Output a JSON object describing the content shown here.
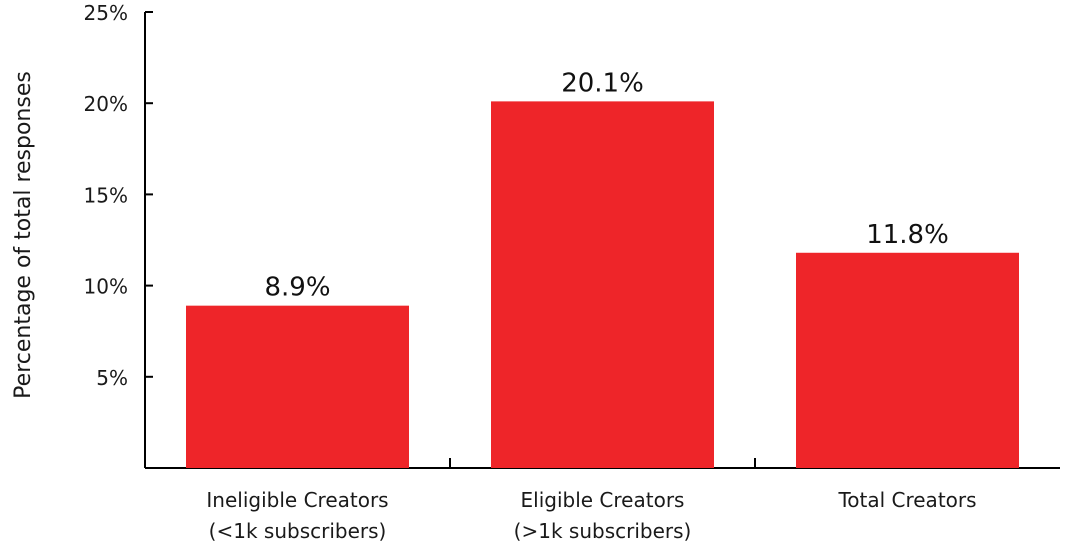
{
  "chart_data": {
    "type": "bar",
    "title": "",
    "xlabel": "",
    "ylabel": "Percentage of total responses",
    "ylim": [
      0,
      25
    ],
    "yticks": [
      5,
      10,
      15,
      20,
      25
    ],
    "ytick_labels": [
      "5%",
      "10%",
      "15%",
      "20%",
      "25%"
    ],
    "categories": [
      [
        "Ineligible Creators",
        "(<1k subscribers)"
      ],
      [
        "Eligible Creators",
        "(>1k subscribers)"
      ],
      [
        "Total Creators"
      ]
    ],
    "values": [
      8.9,
      20.1,
      11.8
    ],
    "value_labels": [
      "8.9%",
      "20.1%",
      "11.8%"
    ],
    "bar_color": "#ee2529",
    "grid": false,
    "legend": "none"
  }
}
